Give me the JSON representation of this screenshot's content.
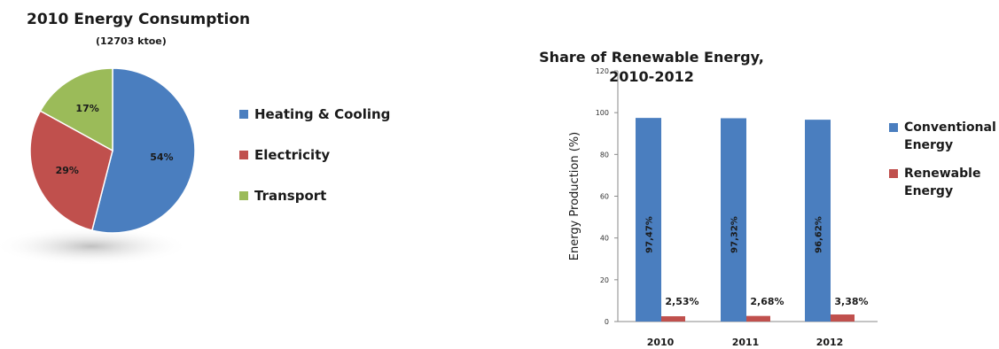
{
  "chart_data": [
    {
      "type": "pie",
      "title": "2010 Energy Consumption",
      "subtitle": "(12703 ktoe)",
      "categories": [
        "Heating & Cooling",
        "Electricity",
        "Transport"
      ],
      "values": [
        54,
        29,
        17
      ],
      "value_labels": [
        "54%",
        "29%",
        "17%"
      ],
      "colors": [
        "#4a7ebf",
        "#c0504d",
        "#9bbb59"
      ],
      "legend_placement": "right"
    },
    {
      "type": "bar",
      "title_lines": [
        "Share of Renewable Energy,",
        "2010-2012"
      ],
      "categories": [
        "2010",
        "2011",
        "2012"
      ],
      "series": [
        {
          "name_lines": [
            "Conventional",
            "Energy"
          ],
          "values": [
            97.47,
            97.32,
            96.62
          ],
          "labels": [
            "97,47%",
            "97,32%",
            "96,62%"
          ],
          "color": "#4a7ebf"
        },
        {
          "name_lines": [
            "Renewable",
            "Energy"
          ],
          "values": [
            2.53,
            2.68,
            3.38
          ],
          "labels": [
            "2,53%",
            "2,68%",
            "3,38%"
          ],
          "color": "#c0504d"
        }
      ],
      "xlabel": "",
      "ylabel": "Energy Production (%)",
      "ylim": [
        0,
        120
      ],
      "yticks": [
        "0",
        "20",
        "40",
        "60",
        "80",
        "100",
        "120"
      ],
      "grid": false,
      "legend_placement": "right"
    }
  ]
}
